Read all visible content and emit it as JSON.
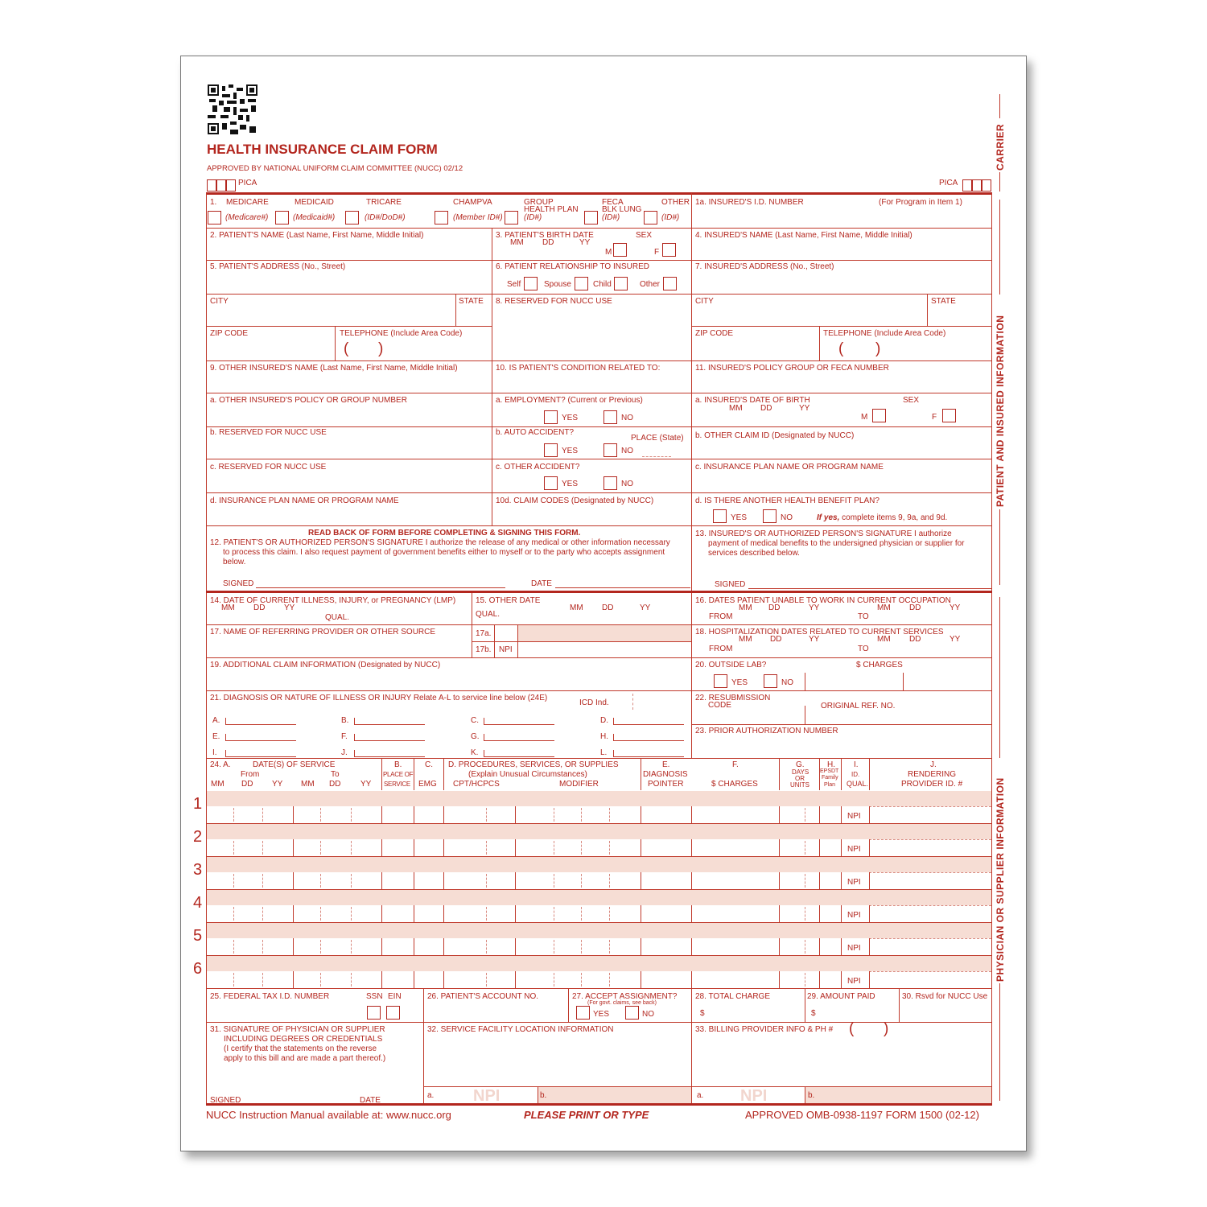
{
  "header": {
    "title": "HEALTH INSURANCE CLAIM FORM",
    "approved": "APPROVED BY NATIONAL UNIFORM CLAIM COMMITTEE (NUCC) 02/12",
    "pica": "PICA",
    "carrier": "CARRIER",
    "side_patient": "PATIENT AND INSURED INFORMATION",
    "side_physician": "PHYSICIAN OR SUPPLIER INFORMATION"
  },
  "i1": {
    "num": "1.",
    "medicare": "MEDICARE",
    "medicaid": "MEDICAID",
    "tricare": "TRICARE",
    "champva": "CHAMPVA",
    "group1": "GROUP",
    "group2": "HEALTH PLAN",
    "feca1": "FECA",
    "feca2": "BLK LUNG",
    "other": "OTHER",
    "medicare_id": "(Medicare#)",
    "medicaid_id": "(Medicaid#)",
    "tricare_id": "(ID#/DoD#)",
    "champva_id": "(Member ID#)",
    "group_id": "(ID#)",
    "feca_id": "(ID#)",
    "other_id": "(ID#)",
    "i1a": "1a. INSURED'S I.D. NUMBER",
    "i1a_note": "(For Program in Item 1)"
  },
  "f": {
    "i2": "2. PATIENT'S NAME (Last Name, First Name, Middle Initial)",
    "i3": "3. PATIENT'S BIRTH DATE",
    "mm": "MM",
    "dd": "DD",
    "yy": "YY",
    "sex": "SEX",
    "m": "M",
    "fe": "F",
    "i4": "4. INSURED'S NAME (Last Name, First Name, Middle Initial)",
    "i5": "5. PATIENT'S ADDRESS (No., Street)",
    "i6": "6. PATIENT RELATIONSHIP TO INSURED",
    "self": "Self",
    "spouse": "Spouse",
    "child": "Child",
    "other": "Other",
    "i7": "7. INSURED'S ADDRESS (No., Street)",
    "city": "CITY",
    "state": "STATE",
    "i8": "8. RESERVED FOR NUCC USE",
    "zip": "ZIP CODE",
    "tel": "TELEPHONE (Include Area Code)",
    "lp": "(",
    "rp": ")",
    "i9": "9. OTHER INSURED'S NAME (Last Name, First Name, Middle Initial)",
    "i10": "10. IS PATIENT'S CONDITION RELATED TO:",
    "i11": "11. INSURED'S POLICY GROUP OR FECA NUMBER",
    "i9a": "a. OTHER INSURED'S POLICY OR GROUP NUMBER",
    "i10a": "a. EMPLOYMENT? (Current or Previous)",
    "yes": "YES",
    "no": "NO",
    "i11a": "a. INSURED'S DATE OF BIRTH",
    "i9b": "b. RESERVED FOR NUCC USE",
    "i10b": "b. AUTO ACCIDENT?",
    "place": "PLACE (State)",
    "i11b": "b. OTHER CLAIM ID (Designated by NUCC)",
    "i9c": "c. RESERVED FOR NUCC USE",
    "i10c": "c. OTHER ACCIDENT?",
    "i11c": "c. INSURANCE PLAN NAME OR PROGRAM NAME",
    "i9d": "d. INSURANCE PLAN NAME OR PROGRAM NAME",
    "i10d": "10d. CLAIM CODES (Designated by NUCC)",
    "i11d": "d. IS THERE ANOTHER HEALTH BENEFIT PLAN?",
    "ifyes_b": "If yes,",
    "ifyes": " complete items 9, 9a, and 9d.",
    "readback": "READ BACK OF FORM BEFORE COMPLETING & SIGNING THIS FORM.",
    "i12a": "12. PATIENT'S OR AUTHORIZED PERSON'S SIGNATURE  I authorize the release of any medical or other information necessary",
    "i12b": "to process this claim. I also request payment of government benefits either to myself or to the party who accepts assignment",
    "i12c": "below.",
    "signed": "SIGNED",
    "date": "DATE",
    "i13a": "13. INSURED'S OR AUTHORIZED PERSON'S SIGNATURE I authorize",
    "i13b": "payment of medical benefits to the undersigned physician or supplier for",
    "i13c": "services described below.",
    "i14": "14. DATE OF CURRENT ILLNESS, INJURY, or PREGNANCY (LMP)",
    "qual": "QUAL.",
    "i15": "15. OTHER DATE",
    "i16": "16. DATES PATIENT UNABLE TO WORK IN CURRENT OCCUPATION",
    "from": "FROM",
    "to": "TO",
    "i17": "17. NAME OF REFERRING PROVIDER OR OTHER SOURCE",
    "i17a": "17a.",
    "i17b": "17b.",
    "npi": "NPI",
    "i18": "18. HOSPITALIZATION DATES RELATED TO CURRENT SERVICES",
    "i19": "19. ADDITIONAL CLAIM INFORMATION (Designated by NUCC)",
    "i20": "20. OUTSIDE LAB?",
    "charges": "$ CHARGES",
    "i21": "21. DIAGNOSIS OR NATURE OF ILLNESS OR INJURY  Relate A-L to service line below (24E)",
    "icd": "ICD Ind.",
    "i22a": "22. RESUBMISSION",
    "i22b": "CODE",
    "origref": "ORIGINAL REF. NO.",
    "i23": "23. PRIOR AUTHORIZATION NUMBER",
    "dxA": "A.",
    "dxB": "B.",
    "dxC": "C.",
    "dxD": "D.",
    "dxE": "E.",
    "dxF": "F.",
    "dxG": "G.",
    "dxH": "H.",
    "dxI": "I.",
    "dxJ": "J.",
    "dxK": "K.",
    "dxL": "L."
  },
  "i24": {
    "a": "24. A.",
    "dos": "DATE(S) OF SERVICE",
    "from": "From",
    "to": "To",
    "mm": "MM",
    "dd": "DD",
    "yy": "YY",
    "b": "B.",
    "pos1": "PLACE OF",
    "pos2": "SERVICE",
    "c": "C.",
    "emg": "EMG",
    "d": "D. PROCEDURES, SERVICES, OR SUPPLIES",
    "d2": "(Explain Unusual Circumstances)",
    "cpt": "CPT/HCPCS",
    "modifier": "MODIFIER",
    "e": "E.",
    "diag": "DIAGNOSIS",
    "pointer": "POINTER",
    "f": "F.",
    "charges": "$ CHARGES",
    "g": "G.",
    "days": "DAYS",
    "or": "OR",
    "units": "UNITS",
    "h": "H.",
    "epsdt": "EPSDT",
    "family": "Family",
    "plan": "Plan",
    "i": "I.",
    "id": "ID.",
    "qual": "QUAL.",
    "j": "J.",
    "rend": "RENDERING",
    "prov": "PROVIDER ID. #",
    "lines": [
      "1",
      "2",
      "3",
      "4",
      "5",
      "6"
    ],
    "npi": "NPI"
  },
  "bottom": {
    "i25": "25. FEDERAL TAX I.D. NUMBER",
    "ssn": "SSN",
    "ein": "EIN",
    "i26": "26. PATIENT'S ACCOUNT NO.",
    "i27": "27. ACCEPT ASSIGNMENT?",
    "i27n": "(For govt. claims, see back)",
    "i28": "28. TOTAL CHARGE",
    "i29": "29. AMOUNT PAID",
    "dollar": "$",
    "i30": "30. Rsvd for NUCC Use",
    "i31a": "31. SIGNATURE OF PHYSICIAN OR SUPPLIER",
    "i31b": "INCLUDING DEGREES OR CREDENTIALS",
    "i31c": "(I certify that the statements on the reverse",
    "i31d": "apply to this bill and are made a part thereof.)",
    "i32": "32. SERVICE FACILITY LOCATION INFORMATION",
    "i33": "33. BILLING PROVIDER INFO & PH #",
    "a": "a.",
    "b": "b.",
    "npi": "NPI"
  },
  "footer": {
    "manual": "NUCC Instruction Manual available at: www.nucc.org",
    "print": "PLEASE PRINT OR TYPE",
    "omb": "APPROVED OMB-0938-1197 FORM 1500 (02-12)"
  },
  "colors": {
    "form_red": "#b3261e",
    "shade": "#f6ddd4"
  }
}
